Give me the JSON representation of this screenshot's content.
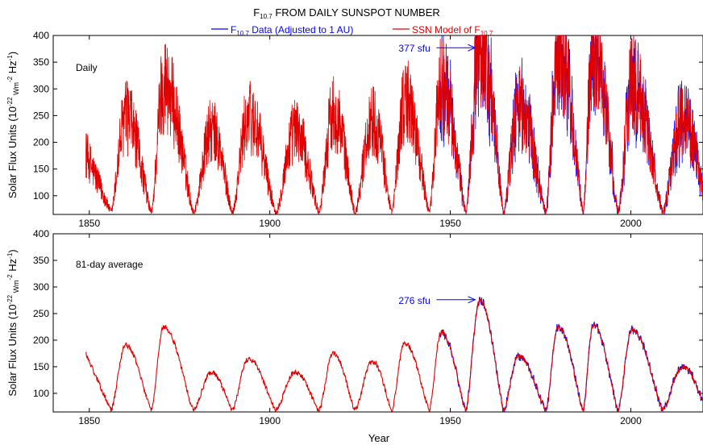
{
  "title": "F",
  "title_sub": "10.7",
  "title_rest": " FROM DAILY SUNSPOT NUMBER",
  "legend": {
    "data_prefix": "F",
    "data_sub": "10.7",
    "data_rest": " Data (Adjusted to 1 AU)",
    "model_text": "SSN Model of F",
    "model_sub": "10.7",
    "data_color": "#0000ff",
    "model_color": "#e00000"
  },
  "xlabel": "Year",
  "ylabel_main": "Solar Flux Units (10",
  "ylabel_exp1": "-22",
  "ylabel_unit": " Wm",
  "ylabel_exp2": "-2",
  "ylabel_hz": " Hz",
  "ylabel_exp3": "-1",
  "ylabel_close": ")",
  "chart_data": [
    {
      "type": "line",
      "panel_label": "Daily",
      "xlim": [
        1840,
        2020
      ],
      "ylim": [
        65,
        400
      ],
      "xticks": [
        1850,
        1900,
        1950,
        2000
      ],
      "yticks": [
        100,
        150,
        200,
        250,
        300,
        350,
        400
      ],
      "annotation": {
        "text": "377 sfu",
        "x": 1958,
        "y": 377
      },
      "cycles": [
        {
          "min": 1856.0,
          "max": 1860.1,
          "peak": 240
        },
        {
          "min": 1867.2,
          "max": 1870.6,
          "peak": 300
        },
        {
          "min": 1878.9,
          "max": 1883.9,
          "peak": 215
        },
        {
          "min": 1889.6,
          "max": 1894.1,
          "peak": 240
        },
        {
          "min": 1901.7,
          "max": 1907.0,
          "peak": 215
        },
        {
          "min": 1913.6,
          "max": 1917.6,
          "peak": 250
        },
        {
          "min": 1923.6,
          "max": 1928.4,
          "peak": 235
        },
        {
          "min": 1933.8,
          "max": 1937.4,
          "peak": 270
        },
        {
          "min": 1944.2,
          "max": 1947.5,
          "peak": 300
        },
        {
          "min": 1954.3,
          "max": 1958.2,
          "peak": 377
        },
        {
          "min": 1964.8,
          "max": 1968.9,
          "peak": 260
        },
        {
          "min": 1976.5,
          "max": 1979.9,
          "peak": 365
        },
        {
          "min": 1986.8,
          "max": 1989.6,
          "peak": 365
        },
        {
          "min": 1996.5,
          "max": 2000.3,
          "peak": 300
        },
        {
          "min": 2008.9,
          "max": 2014.3,
          "peak": 240
        }
      ],
      "series": [
        {
          "name": "F10.7 Data (Adjusted to 1 AU)",
          "start": 1947
        },
        {
          "name": "SSN Model of F10.7",
          "start": 1849
        }
      ]
    },
    {
      "type": "line",
      "panel_label": "81-day average",
      "xlim": [
        1840,
        2020
      ],
      "ylim": [
        65,
        400
      ],
      "xticks": [
        1850,
        1900,
        1950,
        2000
      ],
      "yticks": [
        100,
        150,
        200,
        250,
        300,
        350,
        400
      ],
      "annotation": {
        "text": "276 sfu",
        "x": 1958,
        "y": 276
      },
      "cycles": [
        {
          "min": 1856.0,
          "max": 1860.1,
          "peak": 190
        },
        {
          "min": 1867.2,
          "max": 1870.6,
          "peak": 225
        },
        {
          "min": 1878.9,
          "max": 1883.9,
          "peak": 140
        },
        {
          "min": 1889.6,
          "max": 1894.1,
          "peak": 165
        },
        {
          "min": 1901.7,
          "max": 1907.0,
          "peak": 140
        },
        {
          "min": 1913.6,
          "max": 1917.6,
          "peak": 175
        },
        {
          "min": 1923.6,
          "max": 1928.4,
          "peak": 160
        },
        {
          "min": 1933.8,
          "max": 1937.4,
          "peak": 195
        },
        {
          "min": 1944.2,
          "max": 1947.5,
          "peak": 215
        },
        {
          "min": 1954.3,
          "max": 1958.2,
          "peak": 276
        },
        {
          "min": 1964.8,
          "max": 1968.9,
          "peak": 170
        },
        {
          "min": 1976.5,
          "max": 1979.9,
          "peak": 225
        },
        {
          "min": 1986.8,
          "max": 1989.6,
          "peak": 230
        },
        {
          "min": 1996.5,
          "max": 2000.3,
          "peak": 220
        },
        {
          "min": 2008.9,
          "max": 2014.3,
          "peak": 150
        }
      ],
      "series": [
        {
          "name": "F10.7 Data (Adjusted to 1 AU)",
          "start": 1947
        },
        {
          "name": "SSN Model of F10.7",
          "start": 1849
        }
      ]
    }
  ]
}
